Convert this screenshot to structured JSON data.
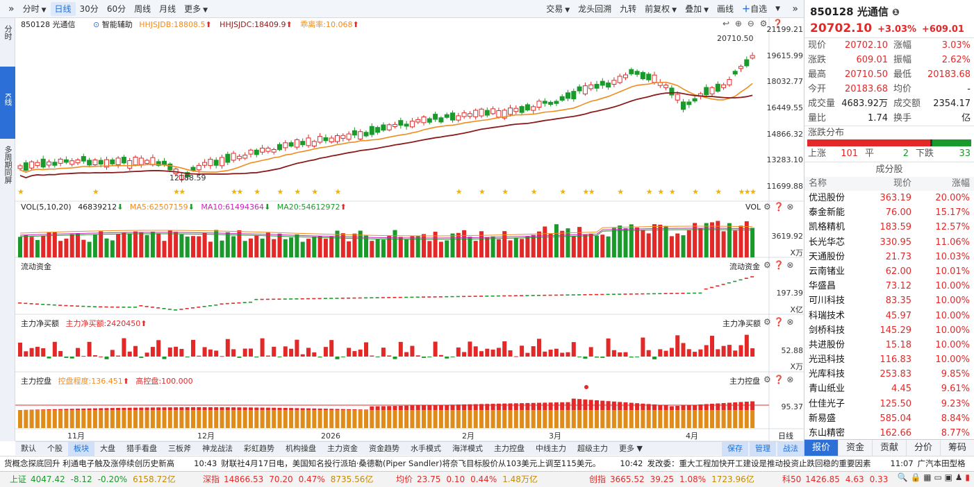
{
  "toolbar": {
    "items": [
      "分时",
      "日线",
      "30分",
      "60分",
      "周线",
      "月线",
      "更多"
    ],
    "active": "日线",
    "right": [
      "交易",
      "龙头回溯",
      "九转",
      "前复权",
      "叠加",
      "画线",
      "自选"
    ]
  },
  "leftbar": [
    "分时",
    "K线",
    "多周期同屏"
  ],
  "main": {
    "stock_label": "850128 光通信",
    "assist": "智能辅助",
    "hhjsjdb": "HHJSJDB:18808.5",
    "hhjsjdc": "HHJSJDC:18409.9",
    "divergence": "乖离率:10.068",
    "y_ticks": [
      "21199.21",
      "19615.99",
      "18032.77",
      "16449.55",
      "14866.32",
      "13283.10",
      "11699.88"
    ],
    "high_label": "20710.50",
    "low_label": "12188.59"
  },
  "vol": {
    "title": "VOL(5,10,20)",
    "value": "46839212",
    "ma5": "MA5:62507159",
    "ma10": "MA10:61494364",
    "ma20": "MA20:54612972",
    "right_label": "VOL",
    "tick": "3619.92",
    "unit": "X万"
  },
  "flow": {
    "title": "流动资金",
    "right_label": "流动资金",
    "tick": "197.39",
    "unit": "X亿"
  },
  "mainbuy": {
    "title": "主力净买额",
    "value": "主力净买额:2420450",
    "right_label": "主力净买额",
    "tick": "52.88",
    "unit": "X万"
  },
  "control": {
    "title": "主力控盘",
    "degree": "控盘程度:136.451",
    "high": "高控盘:100.000",
    "right_label": "主力控盘",
    "tick": "95.37"
  },
  "xaxis": [
    "11月",
    "12月",
    "2026",
    "2月",
    "3月",
    "4月"
  ],
  "period_label": "日线",
  "bottom_tabs": [
    "默认",
    "个股",
    "板块",
    "大盘",
    "猎手看盘",
    "三板斧",
    "神龙战法",
    "彩虹趋势",
    "机构操盘",
    "主力资金",
    "资金趋势",
    "水手模式",
    "海洋模式",
    "主力控盘",
    "中线主力",
    "超级主力",
    "更多"
  ],
  "bottom_active": "板块",
  "bottom_right": [
    "保存",
    "管理",
    "战法"
  ],
  "news": [
    {
      "text": "货概念探底回升 利通电子触及涨停续创历史新高"
    },
    {
      "time": "10:43",
      "text": "财联社4月17日电，美国知名投行派珀·桑德勒(Piper Sandler)将奈飞目标股价从103美元上调至115美元。"
    },
    {
      "time": "10:42",
      "text": "发改委：重大工程加快开工建设是推动投资止跌回稳的重要因素"
    },
    {
      "time": "11:07",
      "text": "广汽本田型格"
    }
  ],
  "indices": [
    {
      "name": "上证",
      "price": "4047.42",
      "chg": "-8.12",
      "pct": "-0.20%",
      "amt": "6158.72亿",
      "dir": "dn"
    },
    {
      "name": "深指",
      "price": "14866.53",
      "chg": "70.20",
      "pct": "0.47%",
      "amt": "8735.56亿",
      "dir": "up"
    },
    {
      "name": "均价",
      "price": "23.75",
      "chg": "0.10",
      "pct": "0.44%",
      "amt": "1.48万亿",
      "dir": "up"
    },
    {
      "name": "创指",
      "price": "3665.52",
      "chg": "39.25",
      "pct": "1.08%",
      "amt": "1723.96亿",
      "dir": "up"
    },
    {
      "name": "科50",
      "price": "1426.85",
      "chg": "4.63",
      "pct": "0.33",
      "amt": "",
      "dir": "up"
    }
  ],
  "quote": {
    "code": "850128",
    "name": "光通信",
    "price": "20702.10",
    "chg": "+3.03%",
    "chg_amt": "+609.01",
    "rows": [
      [
        "现价",
        "20702.10",
        "涨幅",
        "3.03%"
      ],
      [
        "涨跌",
        "609.01",
        "振幅",
        "2.62%"
      ],
      [
        "最高",
        "20710.50",
        "最低",
        "20183.68"
      ],
      [
        "今开",
        "20183.68",
        "均价",
        "-"
      ],
      [
        "成交量",
        "4683.92万",
        "成交额",
        "2354.17亿"
      ],
      [
        "量比",
        "1.74",
        "换手",
        "-"
      ]
    ],
    "dist_title": "涨跌分布",
    "up_label": "上涨",
    "up": "101",
    "flat_label": "平",
    "flat": "2",
    "down_label": "下跌",
    "down": "33",
    "up_ratio": 0.747,
    "flat_ratio": 0.015
  },
  "constituents": {
    "title": "成分股",
    "headers": [
      "名称",
      "现价",
      "涨幅"
    ],
    "rows": [
      [
        "优迅股份",
        "363.19",
        "20.00%"
      ],
      [
        "泰金新能",
        "76.00",
        "15.17%"
      ],
      [
        "凯格精机",
        "183.59",
        "12.57%"
      ],
      [
        "长光华芯",
        "330.95",
        "11.06%"
      ],
      [
        "天通股份",
        "21.73",
        "10.03%"
      ],
      [
        "云南锗业",
        "62.00",
        "10.01%"
      ],
      [
        "华盛昌",
        "73.12",
        "10.00%"
      ],
      [
        "可川科技",
        "83.35",
        "10.00%"
      ],
      [
        "科瑞技术",
        "45.97",
        "10.00%"
      ],
      [
        "剑桥科技",
        "145.29",
        "10.00%"
      ],
      [
        "共进股份",
        "15.18",
        "10.00%"
      ],
      [
        "光迅科技",
        "116.83",
        "10.00%"
      ],
      [
        "光库科技",
        "253.83",
        "9.85%"
      ],
      [
        "青山纸业",
        "4.45",
        "9.61%"
      ],
      [
        "仕佳光子",
        "125.50",
        "9.23%"
      ],
      [
        "新易盛",
        "585.04",
        "8.84%"
      ],
      [
        "东山精密",
        "162.66",
        "8.77%"
      ]
    ]
  },
  "right_tabs": [
    "报价",
    "资金",
    "贡献",
    "分价",
    "筹码"
  ],
  "right_active": "报价",
  "colors": {
    "up": "#e32828",
    "down": "#1a9a2a",
    "ma_orange": "#f08c1e",
    "ma_dark": "#8b1a1a",
    "accent": "#2c6fd6"
  }
}
